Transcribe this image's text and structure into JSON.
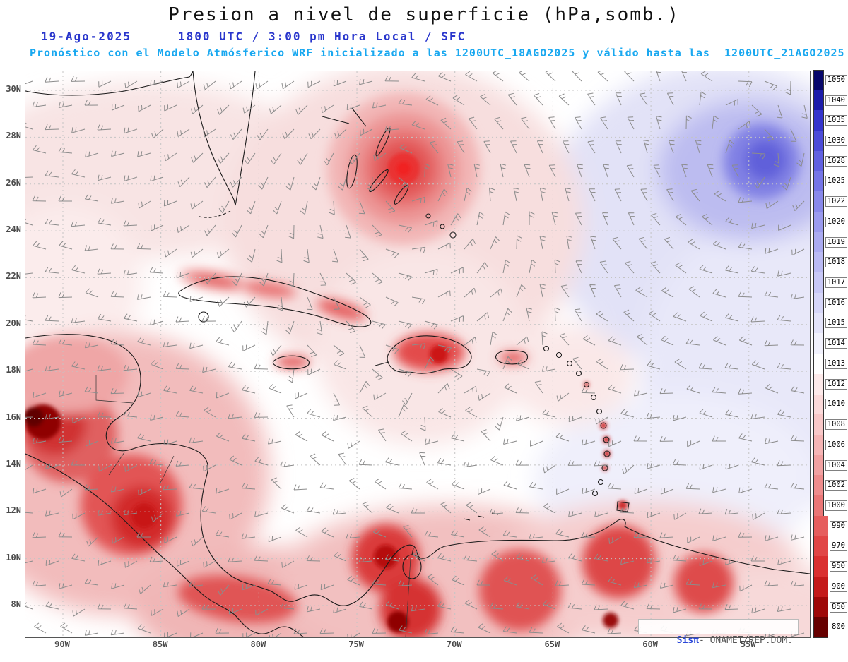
{
  "header": {
    "title": "Presion a nivel de superficie (hPa,somb.)",
    "date": "19-Ago-2025",
    "time": "1800 UTC / 3:00 pm Hora Local / SFC",
    "forecast": "Pronóstico con el Modelo Atmósferico WRF inicializado a las 1200UTC_18AGO2025 y válido hasta las  1200UTC_21AGO2025",
    "title_color": "#111111",
    "date_time_color": "#2936cc",
    "forecast_color": "#19a8f0"
  },
  "map": {
    "lat_labels": [
      "30N",
      "28N",
      "26N",
      "24N",
      "22N",
      "20N",
      "18N",
      "16N",
      "14N",
      "12N",
      "10N",
      "8N"
    ],
    "lon_labels": [
      "90W",
      "85W",
      "80W",
      "75W",
      "70W",
      "65W",
      "60W",
      "55W"
    ]
  },
  "colorbar": {
    "unit": "hPa",
    "values": [
      "1050",
      "1040",
      "1035",
      "1030",
      "1028",
      "1025",
      "1022",
      "1020",
      "1019",
      "1018",
      "1017",
      "1016",
      "1015",
      "1014",
      "1013",
      "1012",
      "1010",
      "1008",
      "1006",
      "1004",
      "1002",
      "1000",
      "990",
      "970",
      "950",
      "900",
      "850",
      "800"
    ],
    "colors": [
      "#08086b",
      "#1c1caa",
      "#3434cc",
      "#4c4cd8",
      "#6161e0",
      "#7575e6",
      "#8989ea",
      "#9b9bee",
      "#ababf1",
      "#babaf3",
      "#c8c8f6",
      "#d6d6f8",
      "#e4e4fa",
      "#f2f2fd",
      "#ffffff",
      "#fdeaea",
      "#fbdada",
      "#f8c8c8",
      "#f5b5b5",
      "#f1a1a1",
      "#ee8c8c",
      "#ea7676",
      "#e65e5e",
      "#e14646",
      "#da3030",
      "#c41a1a",
      "#9e0808",
      "#670000"
    ]
  },
  "watermark": {
    "brand": "Sisπ",
    "rest": "- ONAMET/REP.DOM."
  },
  "chart_data": {
    "type": "heatmap",
    "title": "Presion a nivel de superficie (hPa,somb.)",
    "x_ticks": [
      "90W",
      "85W",
      "80W",
      "75W",
      "70W",
      "65W",
      "60W",
      "55W"
    ],
    "y_ticks": [
      "30N",
      "28N",
      "26N",
      "24N",
      "22N",
      "20N",
      "18N",
      "16N",
      "14N",
      "12N",
      "10N",
      "8N"
    ],
    "colorbar_values": [
      1050,
      1040,
      1035,
      1030,
      1028,
      1025,
      1022,
      1020,
      1019,
      1018,
      1017,
      1016,
      1015,
      1014,
      1013,
      1012,
      1010,
      1008,
      1006,
      1004,
      1002,
      1000,
      990,
      970,
      950,
      900,
      850,
      800
    ],
    "legend_position": "right"
  }
}
